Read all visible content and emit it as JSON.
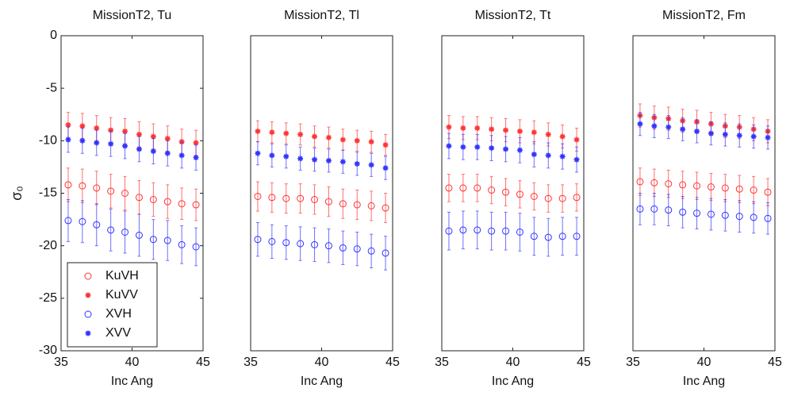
{
  "chart_data": [
    {
      "type": "errorbar",
      "title": "MissionT2, Tu",
      "xlabel": "Inc Ang",
      "ylabel": "σ₀",
      "x": [
        35.5,
        36.5,
        37.5,
        38.5,
        39.5,
        40.5,
        41.5,
        42.5,
        43.5,
        44.5
      ],
      "xlim": [
        35,
        45
      ],
      "xticks": [
        35,
        40,
        45
      ],
      "ylim": [
        -30,
        0
      ],
      "yticks": [
        -30,
        -25,
        -20,
        -15,
        -10,
        -5,
        0
      ],
      "legend": "lower left",
      "series": [
        {
          "name": "KuVH",
          "color": "#ff3333",
          "marker": "o",
          "values": [
            -14.2,
            -14.3,
            -14.5,
            -14.8,
            -15.0,
            -15.4,
            -15.6,
            -15.8,
            -16.0,
            -16.1
          ],
          "errors": [
            1.6,
            1.6,
            1.6,
            1.6,
            1.6,
            1.6,
            1.6,
            1.6,
            1.5,
            1.5
          ]
        },
        {
          "name": "KuVV",
          "color": "#ff3333",
          "marker": "*",
          "values": [
            -8.5,
            -8.6,
            -8.8,
            -9.0,
            -9.1,
            -9.4,
            -9.6,
            -9.8,
            -10.1,
            -10.2
          ],
          "errors": [
            1.2,
            1.2,
            1.2,
            1.2,
            1.2,
            1.2,
            1.2,
            1.2,
            1.2,
            1.2
          ]
        },
        {
          "name": "XVH",
          "color": "#3333ff",
          "marker": "o",
          "values": [
            -17.6,
            -17.7,
            -18.0,
            -18.5,
            -18.7,
            -19.0,
            -19.4,
            -19.5,
            -19.9,
            -20.1
          ],
          "errors": [
            2.0,
            2.0,
            2.0,
            2.0,
            2.0,
            2.0,
            1.9,
            1.9,
            1.8,
            1.8
          ]
        },
        {
          "name": "XVV",
          "color": "#3333ff",
          "marker": "*",
          "values": [
            -9.9,
            -10.0,
            -10.2,
            -10.3,
            -10.5,
            -10.8,
            -11.0,
            -11.2,
            -11.4,
            -11.6
          ],
          "errors": [
            1.2,
            1.2,
            1.2,
            1.2,
            1.2,
            1.2,
            1.2,
            1.2,
            1.2,
            1.2
          ]
        }
      ]
    },
    {
      "type": "errorbar",
      "title": "MissionT2, Tl",
      "xlabel": "Inc Ang",
      "x": [
        35.5,
        36.5,
        37.5,
        38.5,
        39.5,
        40.5,
        41.5,
        42.5,
        43.5,
        44.5
      ],
      "xlim": [
        35,
        45
      ],
      "xticks": [
        35,
        40,
        45
      ],
      "ylim": [
        -30,
        0
      ],
      "series": [
        {
          "color": "#ff3333",
          "marker": "o",
          "values": [
            -15.3,
            -15.4,
            -15.5,
            -15.5,
            -15.6,
            -15.8,
            -16.0,
            -16.1,
            -16.2,
            -16.4
          ],
          "errors": [
            1.4,
            1.4,
            1.4,
            1.4,
            1.4,
            1.4,
            1.4,
            1.4,
            1.4,
            1.4
          ]
        },
        {
          "color": "#ff3333",
          "marker": "*",
          "values": [
            -9.1,
            -9.2,
            -9.3,
            -9.4,
            -9.6,
            -9.7,
            -9.9,
            -10.0,
            -10.1,
            -10.4
          ],
          "errors": [
            1.0,
            1.0,
            1.0,
            1.0,
            1.0,
            1.0,
            1.0,
            1.0,
            1.0,
            1.0
          ]
        },
        {
          "color": "#3333ff",
          "marker": "o",
          "values": [
            -19.4,
            -19.6,
            -19.7,
            -19.8,
            -19.9,
            -20.0,
            -20.2,
            -20.3,
            -20.5,
            -20.7
          ],
          "errors": [
            1.6,
            1.6,
            1.6,
            1.6,
            1.6,
            1.6,
            1.6,
            1.6,
            1.6,
            1.6
          ]
        },
        {
          "color": "#3333ff",
          "marker": "*",
          "values": [
            -11.2,
            -11.4,
            -11.5,
            -11.7,
            -11.8,
            -11.9,
            -12.0,
            -12.2,
            -12.3,
            -12.6
          ],
          "errors": [
            1.1,
            1.1,
            1.1,
            1.1,
            1.1,
            1.1,
            1.1,
            1.1,
            1.1,
            1.1
          ]
        }
      ]
    },
    {
      "type": "errorbar",
      "title": "MissionT2, Tt",
      "xlabel": "Inc Ang",
      "x": [
        35.5,
        36.5,
        37.5,
        38.5,
        39.5,
        40.5,
        41.5,
        42.5,
        43.5,
        44.5
      ],
      "xlim": [
        35,
        45
      ],
      "xticks": [
        35,
        40,
        45
      ],
      "ylim": [
        -30,
        0
      ],
      "series": [
        {
          "color": "#ff3333",
          "marker": "o",
          "values": [
            -14.5,
            -14.5,
            -14.5,
            -14.7,
            -14.9,
            -15.1,
            -15.3,
            -15.5,
            -15.5,
            -15.4
          ],
          "errors": [
            1.3,
            1.3,
            1.3,
            1.3,
            1.3,
            1.3,
            1.3,
            1.3,
            1.3,
            1.3
          ]
        },
        {
          "color": "#ff3333",
          "marker": "*",
          "values": [
            -8.7,
            -8.8,
            -8.8,
            -8.9,
            -9.0,
            -9.1,
            -9.2,
            -9.4,
            -9.6,
            -9.9
          ],
          "errors": [
            1.1,
            1.1,
            1.1,
            1.1,
            1.1,
            1.1,
            1.1,
            1.1,
            1.1,
            1.1
          ]
        },
        {
          "color": "#3333ff",
          "marker": "o",
          "values": [
            -18.6,
            -18.5,
            -18.5,
            -18.6,
            -18.6,
            -18.7,
            -19.1,
            -19.2,
            -19.1,
            -19.1
          ],
          "errors": [
            1.8,
            1.8,
            1.8,
            1.8,
            1.8,
            1.8,
            1.8,
            1.8,
            1.8,
            1.8
          ]
        },
        {
          "color": "#3333ff",
          "marker": "*",
          "values": [
            -10.5,
            -10.6,
            -10.6,
            -10.7,
            -10.8,
            -10.9,
            -11.3,
            -11.4,
            -11.5,
            -11.8
          ],
          "errors": [
            1.2,
            1.2,
            1.2,
            1.2,
            1.2,
            1.2,
            1.2,
            1.2,
            1.2,
            1.2
          ]
        }
      ]
    },
    {
      "type": "errorbar",
      "title": "MissionT2, Fm",
      "xlabel": "Inc Ang",
      "x": [
        35.5,
        36.5,
        37.5,
        38.5,
        39.5,
        40.5,
        41.5,
        42.5,
        43.5,
        44.5
      ],
      "xlim": [
        35,
        45
      ],
      "xticks": [
        35,
        40,
        45
      ],
      "ylim": [
        -30,
        0
      ],
      "series": [
        {
          "color": "#ff3333",
          "marker": "o",
          "values": [
            -13.9,
            -14.0,
            -14.1,
            -14.2,
            -14.3,
            -14.4,
            -14.5,
            -14.6,
            -14.7,
            -14.9
          ],
          "errors": [
            1.3,
            1.3,
            1.3,
            1.3,
            1.3,
            1.3,
            1.3,
            1.3,
            1.3,
            1.3
          ]
        },
        {
          "color": "#ff3333",
          "marker": "*",
          "values": [
            -7.6,
            -7.8,
            -7.9,
            -8.1,
            -8.2,
            -8.4,
            -8.6,
            -8.7,
            -8.9,
            -9.1
          ],
          "errors": [
            1.1,
            1.1,
            1.1,
            1.1,
            1.1,
            1.1,
            1.1,
            1.1,
            1.1,
            1.1
          ]
        },
        {
          "color": "#3333ff",
          "marker": "o",
          "values": [
            -16.5,
            -16.5,
            -16.6,
            -16.8,
            -16.9,
            -17.0,
            -17.1,
            -17.2,
            -17.3,
            -17.4
          ],
          "errors": [
            1.5,
            1.5,
            1.5,
            1.5,
            1.5,
            1.5,
            1.5,
            1.5,
            1.5,
            1.5
          ]
        },
        {
          "color": "#3333ff",
          "marker": "*",
          "values": [
            -8.4,
            -8.6,
            -8.7,
            -8.9,
            -9.1,
            -9.3,
            -9.4,
            -9.5,
            -9.6,
            -9.7
          ],
          "errors": [
            1.1,
            1.1,
            1.1,
            1.1,
            1.1,
            1.1,
            1.1,
            1.1,
            1.1,
            1.1
          ]
        }
      ]
    }
  ]
}
